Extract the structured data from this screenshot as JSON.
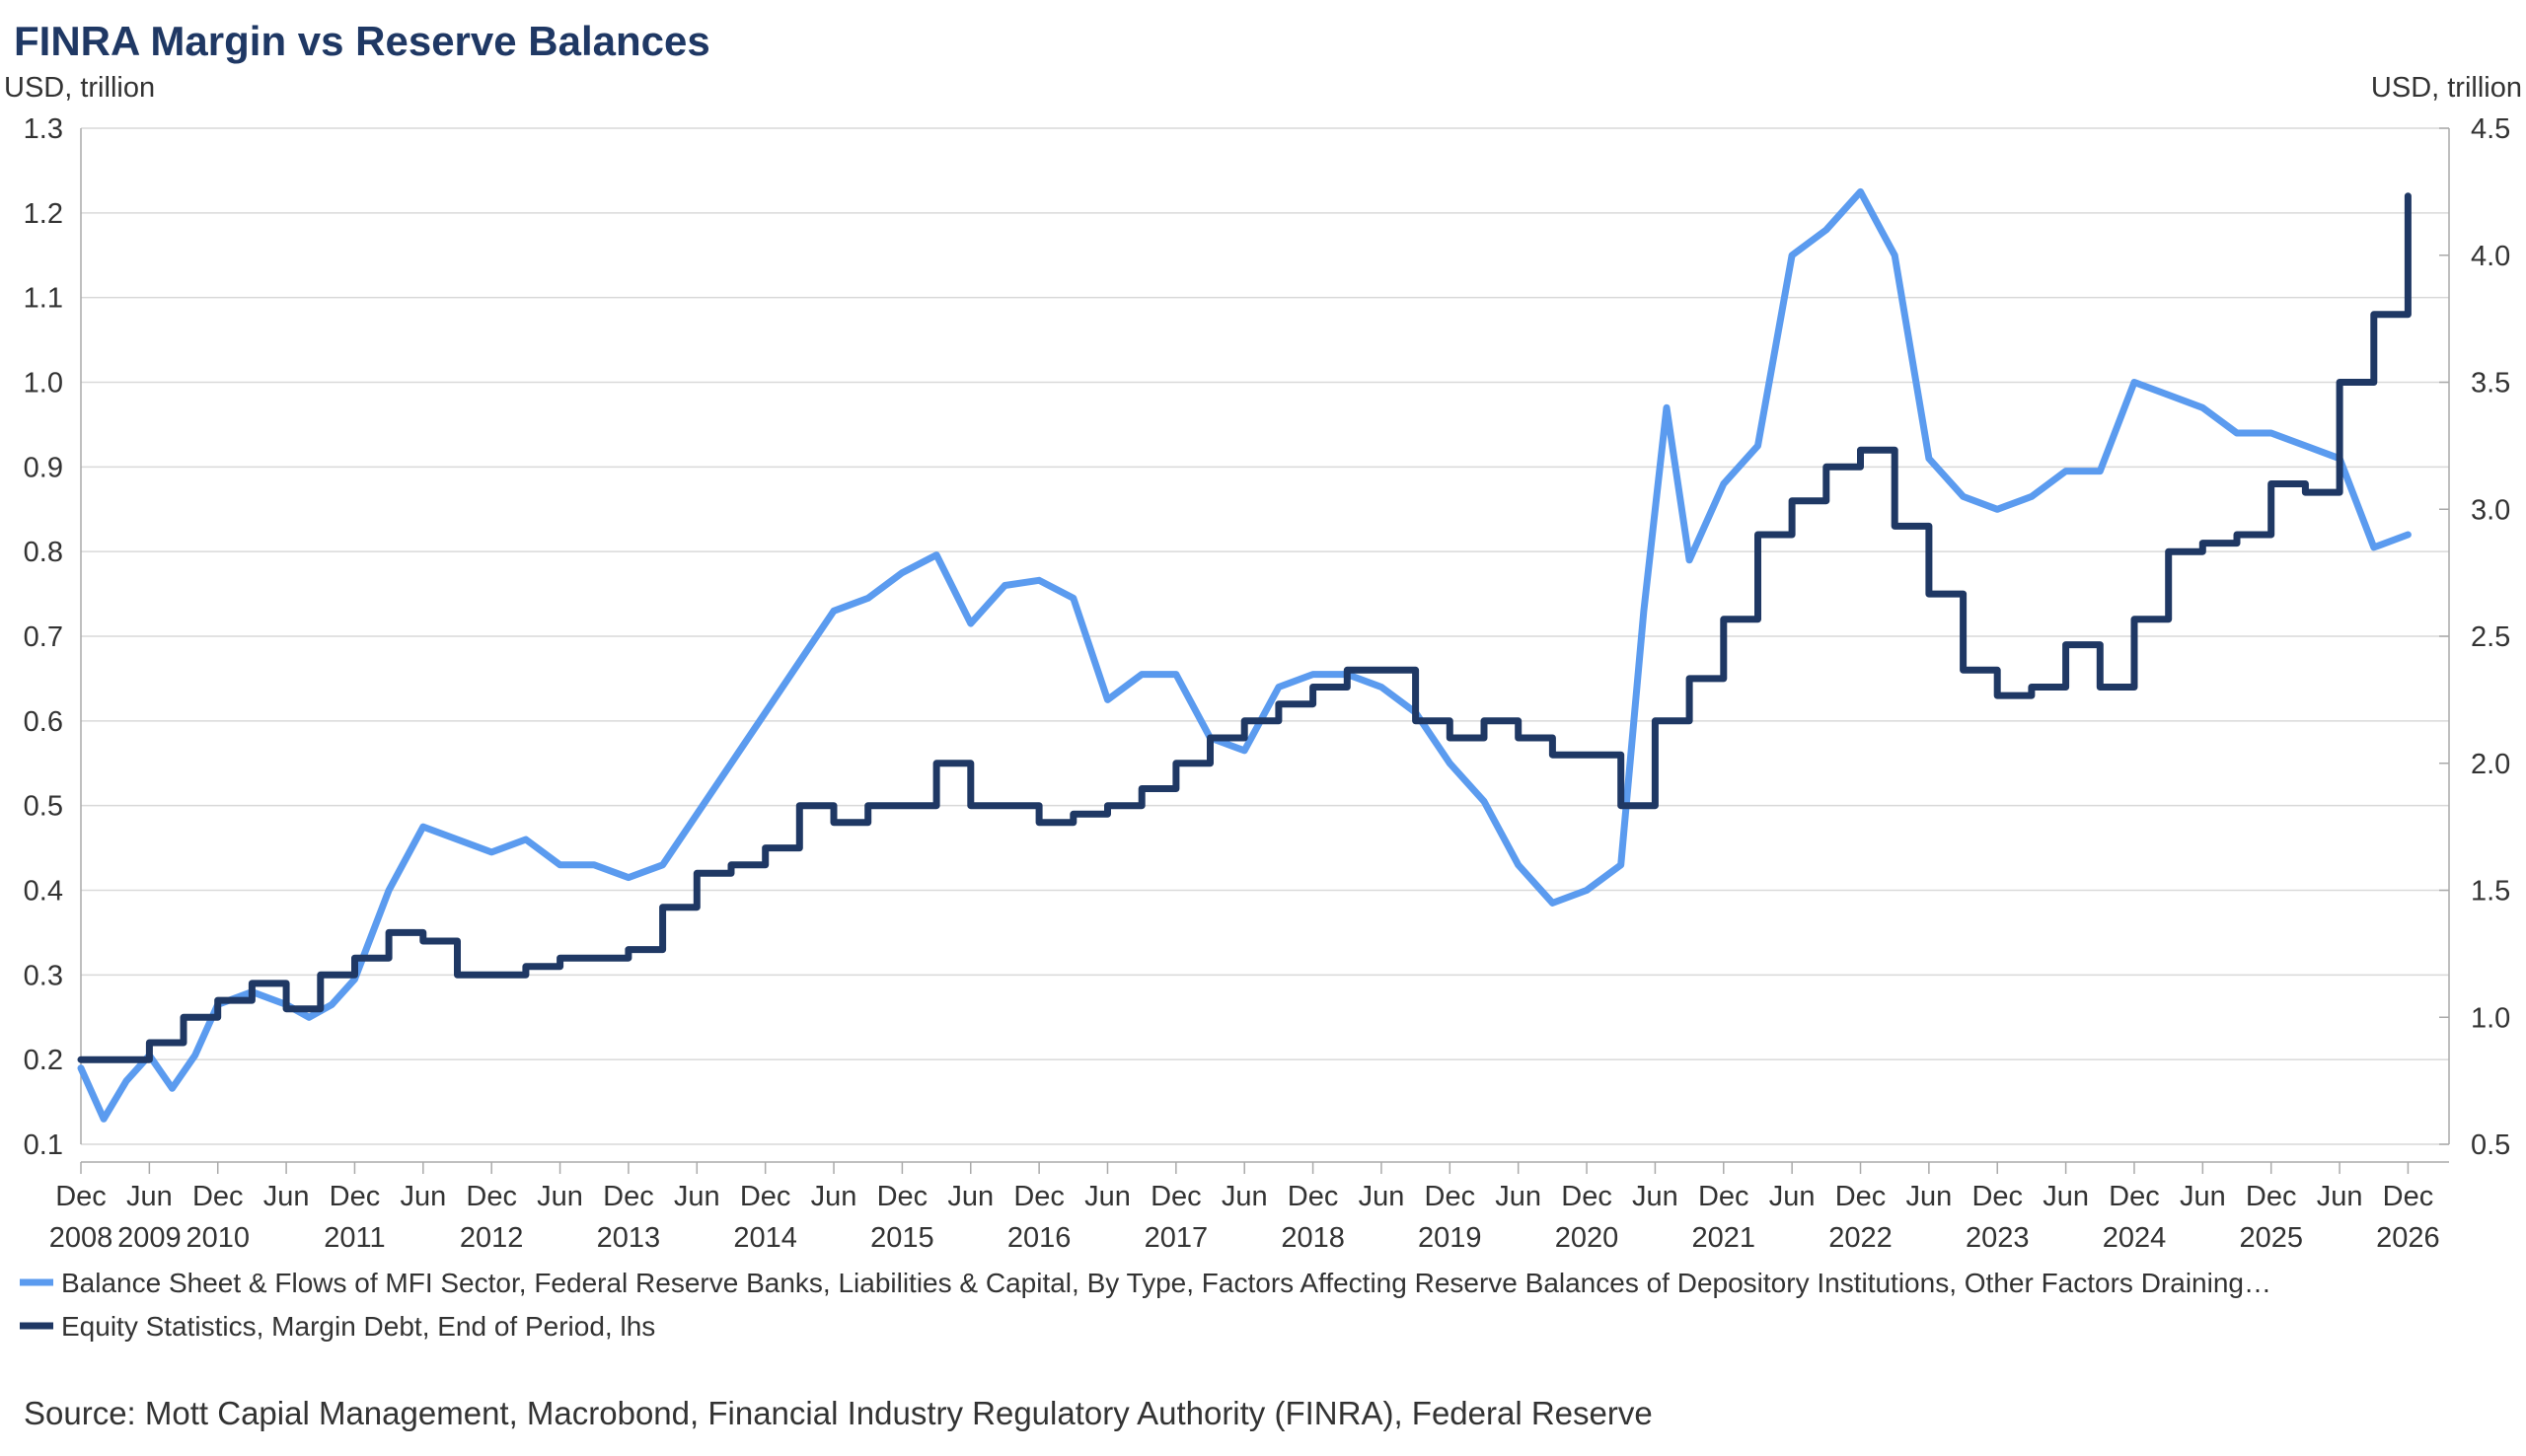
{
  "chart_data": {
    "type": "line",
    "title": "FINRA Margin vs Reserve Balances",
    "y_left": {
      "unit": "USD, trillion",
      "range": [
        0.1,
        1.3
      ],
      "ticks": [
        "0.1",
        "0.2",
        "0.3",
        "0.4",
        "0.5",
        "0.6",
        "0.7",
        "0.8",
        "0.9",
        "1.0",
        "1.1",
        "1.2",
        "1.3"
      ]
    },
    "y_right": {
      "unit": "USD, trillion",
      "range": [
        0.5,
        4.5
      ],
      "ticks": [
        "0.5",
        "1.0",
        "1.5",
        "2.0",
        "2.5",
        "3.0",
        "3.5",
        "4.0",
        "4.5"
      ]
    },
    "x_range": [
      "2008-12",
      "2026-01"
    ],
    "x_ticks": [
      {
        "month": "Dec",
        "year": "2008"
      },
      {
        "month": "Jun",
        "year": "2009"
      },
      {
        "month": "Dec",
        "year": "2010"
      },
      {
        "month": "Jun",
        "year": ""
      },
      {
        "month": "Dec",
        "year": "2011"
      },
      {
        "month": "Jun",
        "year": ""
      },
      {
        "month": "Dec",
        "year": "2012"
      },
      {
        "month": "Jun",
        "year": ""
      },
      {
        "month": "Dec",
        "year": "2013"
      },
      {
        "month": "Jun",
        "year": ""
      },
      {
        "month": "Dec",
        "year": "2014"
      },
      {
        "month": "Jun",
        "year": ""
      },
      {
        "month": "Dec",
        "year": "2015"
      },
      {
        "month": "Jun",
        "year": ""
      },
      {
        "month": "Dec",
        "year": "2016"
      },
      {
        "month": "Jun",
        "year": ""
      },
      {
        "month": "Dec",
        "year": "2017"
      },
      {
        "month": "Jun",
        "year": ""
      },
      {
        "month": "Dec",
        "year": "2018"
      },
      {
        "month": "Jun",
        "year": ""
      },
      {
        "month": "Dec",
        "year": "2019"
      },
      {
        "month": "Jun",
        "year": ""
      },
      {
        "month": "Dec",
        "year": "2020"
      },
      {
        "month": "Jun",
        "year": ""
      },
      {
        "month": "Dec",
        "year": "2021"
      },
      {
        "month": "Jun",
        "year": ""
      },
      {
        "month": "Dec",
        "year": "2022"
      },
      {
        "month": "Jun",
        "year": ""
      },
      {
        "month": "Dec",
        "year": "2023"
      },
      {
        "month": "Jun",
        "year": ""
      },
      {
        "month": "Dec",
        "year": "2024"
      },
      {
        "month": "Jun",
        "year": ""
      },
      {
        "month": "Dec",
        "year": "2025"
      },
      {
        "month": "Jun",
        "year": ""
      },
      {
        "month": "Dec",
        "year": "2026"
      }
    ],
    "series": [
      {
        "name": "Balance Sheet & Flows of MFI Sector, Federal Reserve Banks, Liabilities & Capital, By Type, Factors Affecting Reserve Balances of Depository Institutions, Other Factors Draining…",
        "axis": "right",
        "color": "#5b9bef",
        "points": [
          [
            "2008-12",
            0.8
          ],
          [
            "2009-02",
            0.6
          ],
          [
            "2009-04",
            0.75
          ],
          [
            "2009-06",
            0.85
          ],
          [
            "2009-08",
            0.72
          ],
          [
            "2009-10",
            0.85
          ],
          [
            "2009-12",
            1.05
          ],
          [
            "2010-03",
            1.1
          ],
          [
            "2010-06",
            1.05
          ],
          [
            "2010-08",
            1.0
          ],
          [
            "2010-10",
            1.05
          ],
          [
            "2010-12",
            1.15
          ],
          [
            "2011-03",
            1.5
          ],
          [
            "2011-06",
            1.75
          ],
          [
            "2011-09",
            1.7
          ],
          [
            "2011-12",
            1.65
          ],
          [
            "2012-03",
            1.7
          ],
          [
            "2012-06",
            1.6
          ],
          [
            "2012-09",
            1.6
          ],
          [
            "2012-12",
            1.55
          ],
          [
            "2013-03",
            1.6
          ],
          [
            "2013-06",
            1.8
          ],
          [
            "2013-09",
            2.0
          ],
          [
            "2013-12",
            2.2
          ],
          [
            "2014-03",
            2.4
          ],
          [
            "2014-06",
            2.6
          ],
          [
            "2014-09",
            2.65
          ],
          [
            "2014-12",
            2.75
          ],
          [
            "2015-03",
            2.82
          ],
          [
            "2015-06",
            2.55
          ],
          [
            "2015-09",
            2.7
          ],
          [
            "2015-12",
            2.72
          ],
          [
            "2016-03",
            2.65
          ],
          [
            "2016-06",
            2.25
          ],
          [
            "2016-09",
            2.35
          ],
          [
            "2016-12",
            2.35
          ],
          [
            "2017-03",
            2.1
          ],
          [
            "2017-06",
            2.05
          ],
          [
            "2017-09",
            2.3
          ],
          [
            "2017-12",
            2.35
          ],
          [
            "2018-03",
            2.35
          ],
          [
            "2018-06",
            2.3
          ],
          [
            "2018-09",
            2.2
          ],
          [
            "2018-12",
            2.0
          ],
          [
            "2019-03",
            1.85
          ],
          [
            "2019-06",
            1.6
          ],
          [
            "2019-09",
            1.45
          ],
          [
            "2019-12",
            1.5
          ],
          [
            "2020-03",
            1.6
          ],
          [
            "2020-05",
            2.6
          ],
          [
            "2020-07",
            3.4
          ],
          [
            "2020-09",
            2.8
          ],
          [
            "2020-12",
            3.1
          ],
          [
            "2021-03",
            3.25
          ],
          [
            "2021-06",
            4.0
          ],
          [
            "2021-09",
            4.1
          ],
          [
            "2021-12",
            4.25
          ],
          [
            "2022-03",
            4.0
          ],
          [
            "2022-06",
            3.2
          ],
          [
            "2022-09",
            3.05
          ],
          [
            "2022-12",
            3.0
          ],
          [
            "2023-03",
            3.05
          ],
          [
            "2023-06",
            3.15
          ],
          [
            "2023-09",
            3.15
          ],
          [
            "2023-12",
            3.5
          ],
          [
            "2024-03",
            3.45
          ],
          [
            "2024-06",
            3.4
          ],
          [
            "2024-09",
            3.3
          ],
          [
            "2024-12",
            3.3
          ],
          [
            "2025-03",
            3.25
          ],
          [
            "2025-06",
            3.2
          ],
          [
            "2025-09",
            2.85
          ],
          [
            "2025-12",
            2.9
          ]
        ]
      },
      {
        "name": "Equity Statistics, Margin Debt, End of Period, lhs",
        "axis": "left",
        "color": "#1f3864",
        "points": [
          [
            "2008-12",
            0.2
          ],
          [
            "2009-06",
            0.22
          ],
          [
            "2009-09",
            0.25
          ],
          [
            "2009-12",
            0.27
          ],
          [
            "2010-03",
            0.29
          ],
          [
            "2010-06",
            0.26
          ],
          [
            "2010-09",
            0.3
          ],
          [
            "2010-12",
            0.32
          ],
          [
            "2011-03",
            0.35
          ],
          [
            "2011-06",
            0.34
          ],
          [
            "2011-09",
            0.3
          ],
          [
            "2011-12",
            0.3
          ],
          [
            "2012-03",
            0.31
          ],
          [
            "2012-06",
            0.32
          ],
          [
            "2012-09",
            0.32
          ],
          [
            "2012-12",
            0.33
          ],
          [
            "2013-03",
            0.38
          ],
          [
            "2013-06",
            0.42
          ],
          [
            "2013-09",
            0.43
          ],
          [
            "2013-12",
            0.45
          ],
          [
            "2014-03",
            0.5
          ],
          [
            "2014-06",
            0.48
          ],
          [
            "2014-09",
            0.5
          ],
          [
            "2014-12",
            0.5
          ],
          [
            "2015-03",
            0.55
          ],
          [
            "2015-06",
            0.5
          ],
          [
            "2015-09",
            0.5
          ],
          [
            "2015-12",
            0.48
          ],
          [
            "2016-03",
            0.49
          ],
          [
            "2016-06",
            0.5
          ],
          [
            "2016-09",
            0.52
          ],
          [
            "2016-12",
            0.55
          ],
          [
            "2017-03",
            0.58
          ],
          [
            "2017-06",
            0.6
          ],
          [
            "2017-09",
            0.62
          ],
          [
            "2017-12",
            0.64
          ],
          [
            "2018-03",
            0.66
          ],
          [
            "2018-06",
            0.66
          ],
          [
            "2018-09",
            0.6
          ],
          [
            "2018-12",
            0.58
          ],
          [
            "2019-03",
            0.6
          ],
          [
            "2019-06",
            0.58
          ],
          [
            "2019-09",
            0.56
          ],
          [
            "2019-12",
            0.56
          ],
          [
            "2020-03",
            0.5
          ],
          [
            "2020-06",
            0.6
          ],
          [
            "2020-09",
            0.65
          ],
          [
            "2020-12",
            0.72
          ],
          [
            "2021-03",
            0.82
          ],
          [
            "2021-06",
            0.86
          ],
          [
            "2021-09",
            0.9
          ],
          [
            "2021-12",
            0.92
          ],
          [
            "2022-03",
            0.83
          ],
          [
            "2022-06",
            0.75
          ],
          [
            "2022-09",
            0.66
          ],
          [
            "2022-12",
            0.63
          ],
          [
            "2023-03",
            0.64
          ],
          [
            "2023-06",
            0.69
          ],
          [
            "2023-09",
            0.64
          ],
          [
            "2023-12",
            0.72
          ],
          [
            "2024-03",
            0.8
          ],
          [
            "2024-06",
            0.81
          ],
          [
            "2024-09",
            0.82
          ],
          [
            "2024-12",
            0.88
          ],
          [
            "2025-03",
            0.87
          ],
          [
            "2025-06",
            1.0
          ],
          [
            "2025-09",
            1.08
          ],
          [
            "2025-12",
            1.22
          ]
        ]
      }
    ],
    "grid": "horizontal",
    "legend": "bottom-left"
  },
  "source": "Source: Mott Capial Management, Macrobond, Financial Industry Regulatory Authority (FINRA), Federal Reserve"
}
